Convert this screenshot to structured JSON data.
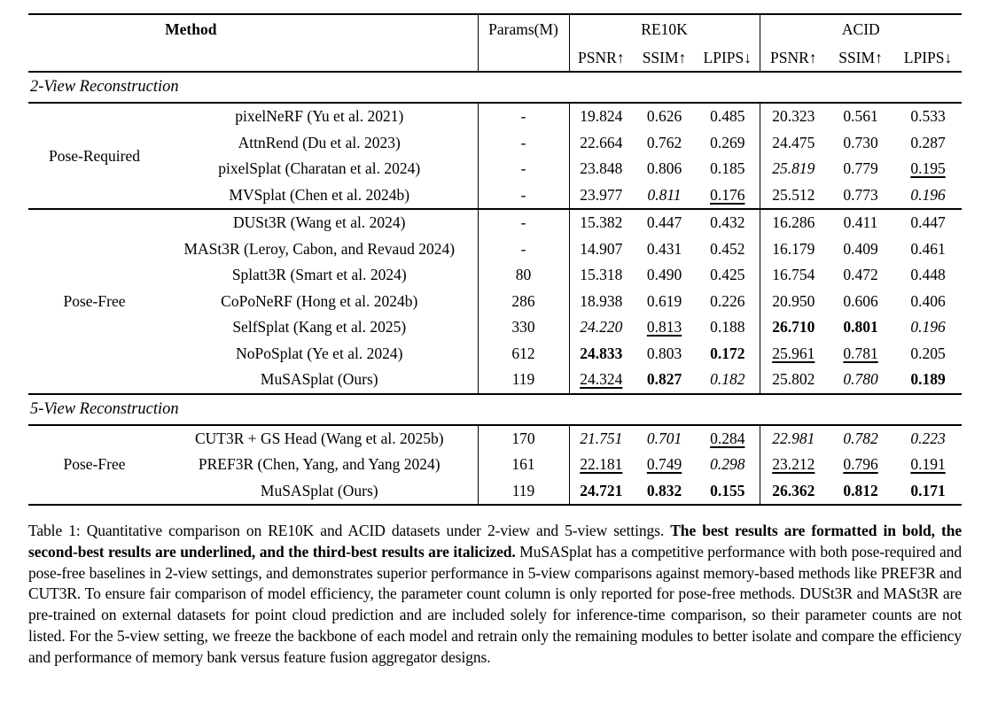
{
  "colors": {
    "text": "#000000",
    "background": "#ffffff",
    "rule": "#000000"
  },
  "table": {
    "header": {
      "method": "Method",
      "params": "Params(M)",
      "dataset_groups": [
        "RE10K",
        "ACID"
      ],
      "metrics": [
        "PSNR↑",
        "SSIM↑",
        "LPIPS↓"
      ]
    },
    "sections": [
      {
        "title": "2-View Reconstruction",
        "blocks": [
          {
            "group": "Pose-Required",
            "rows": [
              {
                "method": "pixelNeRF (Yu et al. 2021)",
                "params": "-",
                "values": [
                  {
                    "v": "19.824",
                    "f": ""
                  },
                  {
                    "v": "0.626",
                    "f": ""
                  },
                  {
                    "v": "0.485",
                    "f": ""
                  },
                  {
                    "v": "20.323",
                    "f": ""
                  },
                  {
                    "v": "0.561",
                    "f": ""
                  },
                  {
                    "v": "0.533",
                    "f": ""
                  }
                ]
              },
              {
                "method": "AttnRend (Du et al. 2023)",
                "params": "-",
                "values": [
                  {
                    "v": "22.664",
                    "f": ""
                  },
                  {
                    "v": "0.762",
                    "f": ""
                  },
                  {
                    "v": "0.269",
                    "f": ""
                  },
                  {
                    "v": "24.475",
                    "f": ""
                  },
                  {
                    "v": "0.730",
                    "f": ""
                  },
                  {
                    "v": "0.287",
                    "f": ""
                  }
                ]
              },
              {
                "method": "pixelSplat (Charatan et al. 2024)",
                "params": "-",
                "values": [
                  {
                    "v": "23.848",
                    "f": ""
                  },
                  {
                    "v": "0.806",
                    "f": ""
                  },
                  {
                    "v": "0.185",
                    "f": ""
                  },
                  {
                    "v": "25.819",
                    "f": "i"
                  },
                  {
                    "v": "0.779",
                    "f": ""
                  },
                  {
                    "v": "0.195",
                    "f": "u"
                  }
                ]
              },
              {
                "method": "MVSplat (Chen et al. 2024b)",
                "params": "-",
                "values": [
                  {
                    "v": "23.977",
                    "f": ""
                  },
                  {
                    "v": "0.811",
                    "f": "i"
                  },
                  {
                    "v": "0.176",
                    "f": "u"
                  },
                  {
                    "v": "25.512",
                    "f": ""
                  },
                  {
                    "v": "0.773",
                    "f": ""
                  },
                  {
                    "v": "0.196",
                    "f": "i"
                  }
                ]
              }
            ]
          },
          {
            "group": "Pose-Free",
            "rows": [
              {
                "method": "DUSt3R (Wang et al. 2024)",
                "params": "-",
                "values": [
                  {
                    "v": "15.382",
                    "f": ""
                  },
                  {
                    "v": "0.447",
                    "f": ""
                  },
                  {
                    "v": "0.432",
                    "f": ""
                  },
                  {
                    "v": "16.286",
                    "f": ""
                  },
                  {
                    "v": "0.411",
                    "f": ""
                  },
                  {
                    "v": "0.447",
                    "f": ""
                  }
                ]
              },
              {
                "method": "MASt3R (Leroy, Cabon, and Revaud 2024)",
                "params": "-",
                "values": [
                  {
                    "v": "14.907",
                    "f": ""
                  },
                  {
                    "v": "0.431",
                    "f": ""
                  },
                  {
                    "v": "0.452",
                    "f": ""
                  },
                  {
                    "v": "16.179",
                    "f": ""
                  },
                  {
                    "v": "0.409",
                    "f": ""
                  },
                  {
                    "v": "0.461",
                    "f": ""
                  }
                ]
              },
              {
                "method": "Splatt3R (Smart et al. 2024)",
                "params": "80",
                "values": [
                  {
                    "v": "15.318",
                    "f": ""
                  },
                  {
                    "v": "0.490",
                    "f": ""
                  },
                  {
                    "v": "0.425",
                    "f": ""
                  },
                  {
                    "v": "16.754",
                    "f": ""
                  },
                  {
                    "v": "0.472",
                    "f": ""
                  },
                  {
                    "v": "0.448",
                    "f": ""
                  }
                ]
              },
              {
                "method": "CoPoNeRF  (Hong et al. 2024b)",
                "params": "286",
                "values": [
                  {
                    "v": "18.938",
                    "f": ""
                  },
                  {
                    "v": "0.619",
                    "f": ""
                  },
                  {
                    "v": "0.226",
                    "f": ""
                  },
                  {
                    "v": "20.950",
                    "f": ""
                  },
                  {
                    "v": "0.606",
                    "f": ""
                  },
                  {
                    "v": "0.406",
                    "f": ""
                  }
                ]
              },
              {
                "method": "SelfSplat  (Kang et al. 2025)",
                "params": "330",
                "values": [
                  {
                    "v": "24.220",
                    "f": "i"
                  },
                  {
                    "v": "0.813",
                    "f": "u"
                  },
                  {
                    "v": "0.188",
                    "f": ""
                  },
                  {
                    "v": "26.710",
                    "f": "b"
                  },
                  {
                    "v": "0.801",
                    "f": "b"
                  },
                  {
                    "v": "0.196",
                    "f": "i"
                  }
                ]
              },
              {
                "method": "NoPoSplat (Ye et al. 2024)",
                "params": "612",
                "values": [
                  {
                    "v": "24.833",
                    "f": "b"
                  },
                  {
                    "v": "0.803",
                    "f": ""
                  },
                  {
                    "v": "0.172",
                    "f": "b"
                  },
                  {
                    "v": "25.961",
                    "f": "u"
                  },
                  {
                    "v": "0.781",
                    "f": "u"
                  },
                  {
                    "v": "0.205",
                    "f": ""
                  }
                ]
              },
              {
                "method": "MuSASplat (Ours)",
                "params": "119",
                "values": [
                  {
                    "v": "24.324",
                    "f": "u"
                  },
                  {
                    "v": "0.827",
                    "f": "b"
                  },
                  {
                    "v": "0.182",
                    "f": "i"
                  },
                  {
                    "v": "25.802",
                    "f": ""
                  },
                  {
                    "v": "0.780",
                    "f": "i"
                  },
                  {
                    "v": "0.189",
                    "f": "b"
                  }
                ]
              }
            ]
          }
        ]
      },
      {
        "title": "5-View Reconstruction",
        "blocks": [
          {
            "group": "Pose-Free",
            "rows": [
              {
                "method": "CUT3R + GS Head  (Wang et al. 2025b)",
                "params": "170",
                "values": [
                  {
                    "v": "21.751",
                    "f": "i"
                  },
                  {
                    "v": "0.701",
                    "f": "i"
                  },
                  {
                    "v": "0.284",
                    "f": "u"
                  },
                  {
                    "v": "22.981",
                    "f": "i"
                  },
                  {
                    "v": "0.782",
                    "f": "i"
                  },
                  {
                    "v": "0.223",
                    "f": "i"
                  }
                ]
              },
              {
                "method": "PREF3R  (Chen, Yang, and Yang 2024)",
                "params": "161",
                "values": [
                  {
                    "v": "22.181",
                    "f": "u"
                  },
                  {
                    "v": "0.749",
                    "f": "u"
                  },
                  {
                    "v": "0.298",
                    "f": "i"
                  },
                  {
                    "v": "23.212",
                    "f": "u"
                  },
                  {
                    "v": "0.796",
                    "f": "u"
                  },
                  {
                    "v": "0.191",
                    "f": "u"
                  }
                ]
              },
              {
                "method": "MuSASplat (Ours)",
                "params": "119",
                "values": [
                  {
                    "v": "24.721",
                    "f": "b"
                  },
                  {
                    "v": "0.832",
                    "f": "b"
                  },
                  {
                    "v": "0.155",
                    "f": "b"
                  },
                  {
                    "v": "26.362",
                    "f": "b"
                  },
                  {
                    "v": "0.812",
                    "f": "b"
                  },
                  {
                    "v": "0.171",
                    "f": "b"
                  }
                ]
              }
            ]
          }
        ]
      }
    ]
  },
  "caption": {
    "prefix": "Table 1: Quantitative comparison on RE10K and ACID datasets under 2-view and 5-view settings. ",
    "bold": "The best results are formatted in bold, the second-best results are underlined, and the third-best results are italicized.",
    "rest": " MuSASplat has a competitive performance with both pose-required and pose-free baselines in 2-view settings, and demonstrates superior performance in 5-view comparisons against memory-based methods like PREF3R and CUT3R. To ensure fair comparison of model efficiency, the parameter count column is only reported for pose-free methods. DUSt3R and MASt3R are pre-trained on external datasets for point cloud prediction and are included solely for inference-time comparison, so their parameter counts are not listed. For the 5-view setting, we freeze the backbone of each model and retrain only the remaining modules to better isolate and compare the efficiency and performance of memory bank versus feature fusion aggregator designs."
  }
}
